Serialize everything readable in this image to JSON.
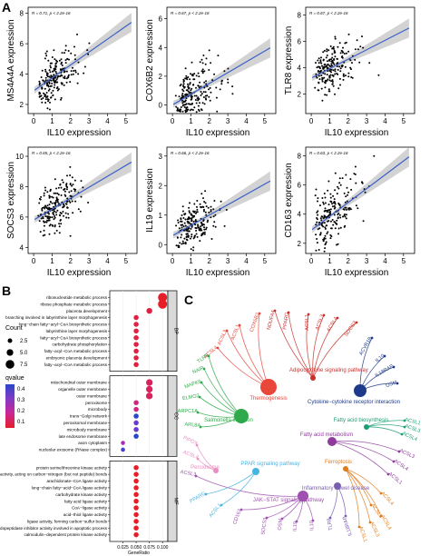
{
  "panel_letters": {
    "a": "A",
    "b": "B",
    "c": "C"
  },
  "chart_data": [
    {
      "id": "ms4a4a",
      "type": "scatter",
      "xlabel": "IL10 expression",
      "ylabel": "MS4A4A expression",
      "stat": "R = 0.71, p < 2.2e-16",
      "xlim": [
        -0.3,
        5.6
      ],
      "ylim": [
        1.4,
        8.4
      ],
      "xticks": [
        0,
        1,
        2,
        3,
        4,
        5
      ],
      "yticks": [
        2,
        4,
        6,
        8
      ],
      "fit": {
        "slope": 0.85,
        "intercept": 2.9
      },
      "seed": 11,
      "spread": 0.8
    },
    {
      "id": "cox6b2",
      "type": "scatter",
      "xlabel": "IL10 expression",
      "ylabel": "COX6B2 expression",
      "stat": "R = 0.67, p < 2.2e-16",
      "xlim": [
        -0.3,
        5.6
      ],
      "ylim": [
        -0.6,
        6.8
      ],
      "xticks": [
        0,
        1,
        2,
        3,
        4,
        5
      ],
      "yticks": [
        0,
        2,
        4,
        6
      ],
      "fit": {
        "slope": 0.75,
        "intercept": 0.0
      },
      "seed": 23,
      "spread": 0.9
    },
    {
      "id": "tlr8",
      "type": "scatter",
      "xlabel": "IL10 expression",
      "ylabel": "TLR8 expression",
      "stat": "R = 0.67, p < 2.2e-16",
      "xlim": [
        -0.3,
        5.6
      ],
      "ylim": [
        0.5,
        8.6
      ],
      "xticks": [
        0,
        1,
        2,
        3,
        4,
        5
      ],
      "yticks": [
        2,
        4,
        6,
        8
      ],
      "fit": {
        "slope": 0.72,
        "intercept": 3.2
      },
      "seed": 37,
      "spread": 0.9
    },
    {
      "id": "socs3",
      "type": "scatter",
      "xlabel": "IL10 expression",
      "ylabel": "SOCS3 expression",
      "stat": "R = 0.65, p < 2.2e-16",
      "xlim": [
        -0.3,
        5.6
      ],
      "ylim": [
        3.6,
        10.6
      ],
      "xticks": [
        0,
        1,
        2,
        3,
        4,
        5
      ],
      "yticks": [
        4,
        6,
        8,
        10
      ],
      "fit": {
        "slope": 0.72,
        "intercept": 5.8
      },
      "seed": 41,
      "spread": 0.85
    },
    {
      "id": "il19",
      "type": "scatter",
      "xlabel": "IL10 expression",
      "ylabel": "IL19 expression",
      "stat": "R = 0.66, p < 2.2e-16",
      "xlim": [
        -0.3,
        5.6
      ],
      "ylim": [
        -0.3,
        3.3
      ],
      "xticks": [
        0,
        1,
        2,
        3,
        4,
        5
      ],
      "yticks": [
        0,
        1,
        2,
        3
      ],
      "fit": {
        "slope": 0.35,
        "intercept": 0.3
      },
      "seed": 53,
      "spread": 0.4
    },
    {
      "id": "cd163",
      "type": "scatter",
      "xlabel": "IL10 expression",
      "ylabel": "CD163 expression",
      "stat": "R = 0.63, p < 2.2e-16",
      "xlim": [
        -0.3,
        5.6
      ],
      "ylim": [
        1.3,
        8.6
      ],
      "xticks": [
        0,
        1,
        2,
        3,
        4,
        5
      ],
      "yticks": [
        2,
        4,
        6,
        8
      ],
      "fit": {
        "slope": 0.95,
        "intercept": 2.9
      },
      "seed": 67,
      "spread": 0.95
    },
    {
      "id": "go_dotplot",
      "type": "scatter",
      "xlabel": "GeneRatio",
      "xticks": [
        0.025,
        0.05,
        0.075,
        0.1
      ],
      "xtick_labels": [
        "0.025",
        "0.050",
        "0.075",
        "0.100"
      ],
      "xlim": [
        0.0,
        0.11
      ],
      "legend": {
        "count_title": "Count",
        "count_values": [
          2.5,
          5.0,
          7.5
        ],
        "count_labels": [
          "2.5",
          "5.0",
          "7.5"
        ],
        "q_title": "qvalue",
        "q_ticks": [
          "0.4",
          "0.3",
          "0.2",
          "0.1"
        ]
      },
      "groups": [
        {
          "name": "BP",
          "terms": [
            {
              "term": "ribonucleotide metabolic process",
              "ratio": 0.1,
              "count": 8,
              "q": 0.02
            },
            {
              "term": "ribose phosphate metabolic process",
              "ratio": 0.1,
              "count": 8,
              "q": 0.02
            },
            {
              "term": "placenta development",
              "ratio": 0.075,
              "count": 4,
              "q": 0.05
            },
            {
              "term": "branching involved in labyrinthine layer morphogenesis",
              "ratio": 0.05,
              "count": 3,
              "q": 0.05
            },
            {
              "term": "long−chain fatty−acyl−CoA biosynthetic process",
              "ratio": 0.05,
              "count": 3,
              "q": 0.05
            },
            {
              "term": "labyrinthine layer morphogenesis",
              "ratio": 0.05,
              "count": 3,
              "q": 0.05
            },
            {
              "term": "fatty−acyl−CoA biosynthetic process",
              "ratio": 0.05,
              "count": 3,
              "q": 0.05
            },
            {
              "term": "carbohydrate phosphorylation",
              "ratio": 0.05,
              "count": 3,
              "q": 0.05
            },
            {
              "term": "fatty−acyl−CoA metabolic process",
              "ratio": 0.05,
              "count": 3,
              "q": 0.05
            },
            {
              "term": "embryonic placenta development",
              "ratio": 0.05,
              "count": 3,
              "q": 0.05
            },
            {
              "term": "fatty−acyl−CoA metabolic process",
              "ratio": 0.05,
              "count": 3,
              "q": 0.05
            }
          ]
        },
        {
          "name": "CC",
          "terms": [
            {
              "term": "mitochondrial outer membrane",
              "ratio": 0.075,
              "count": 5,
              "q": 0.08
            },
            {
              "term": "organelle outer membrane",
              "ratio": 0.075,
              "count": 5,
              "q": 0.08
            },
            {
              "term": "outer membrane",
              "ratio": 0.075,
              "count": 5,
              "q": 0.08
            },
            {
              "term": "peroxisome",
              "ratio": 0.05,
              "count": 3,
              "q": 0.12
            },
            {
              "term": "microbody",
              "ratio": 0.05,
              "count": 3,
              "q": 0.12
            },
            {
              "term": "trans−Golgi network",
              "ratio": 0.05,
              "count": 3,
              "q": 0.4
            },
            {
              "term": "peroxisomal membrane",
              "ratio": 0.05,
              "count": 3,
              "q": 0.3
            },
            {
              "term": "microbody membrane",
              "ratio": 0.05,
              "count": 3,
              "q": 0.3
            },
            {
              "term": "late endosome membrane",
              "ratio": 0.05,
              "count": 3,
              "q": 0.4
            },
            {
              "term": "axon cytoplasm",
              "ratio": 0.025,
              "count": 2,
              "q": 0.2
            },
            {
              "term": "nucleolar exosome (RNase complex)",
              "ratio": 0.025,
              "count": 2,
              "q": 0.35
            }
          ]
        },
        {
          "name": "MF",
          "terms": [
            {
              "term": "protein serine/threonine kinase activity",
              "ratio": 0.05,
              "count": 3,
              "q": 0.02
            },
            {
              "term": "hydrolase activity, acting on carbon−nitrogen (but not peptide) bonds",
              "ratio": 0.05,
              "count": 3,
              "q": 0.02
            },
            {
              "term": "arachidonate−CoA ligase activity",
              "ratio": 0.05,
              "count": 3,
              "q": 0.02
            },
            {
              "term": "long−chain fatty−acid−CoA ligase activity",
              "ratio": 0.05,
              "count": 3,
              "q": 0.02
            },
            {
              "term": "carbohydrate kinase activity",
              "ratio": 0.05,
              "count": 3,
              "q": 0.02
            },
            {
              "term": "fatty acid ligase activity",
              "ratio": 0.05,
              "count": 3,
              "q": 0.02
            },
            {
              "term": "CoA−ligase activity",
              "ratio": 0.05,
              "count": 3,
              "q": 0.02
            },
            {
              "term": "acid−thiol ligase activity",
              "ratio": 0.05,
              "count": 3,
              "q": 0.02
            },
            {
              "term": "ligase activity, forming carbon−sulfur bonds",
              "ratio": 0.05,
              "count": 3,
              "q": 0.02
            },
            {
              "term": "cysteine−type endopeptidase inhibitor activity involved in apoptotic process",
              "ratio": 0.05,
              "count": 3,
              "q": 0.02
            },
            {
              "term": "calmodulin−dependent protein kinase activity",
              "ratio": 0.05,
              "count": 3,
              "q": 0.02
            }
          ]
        }
      ]
    }
  ],
  "network": {
    "hubs": [
      {
        "name": "Thermogenesis",
        "color": "#e8473a"
      },
      {
        "name": "Adipocytokine signaling pathway",
        "color": "#c9302c"
      },
      {
        "name": "Cytokine−cytokine receptor interaction",
        "color": "#1f3a8a"
      },
      {
        "name": "Salmonella infection",
        "color": "#2faa4a"
      },
      {
        "name": "Fatty acid biosynthesis",
        "color": "#1a9e76"
      },
      {
        "name": "Fatty acid metabolism",
        "color": "#8e3b9c"
      },
      {
        "name": "Ferroptosis",
        "color": "#e07b1a"
      },
      {
        "name": "PPAR signaling pathway",
        "color": "#48b4e0"
      },
      {
        "name": "Inflammatory bowel disease",
        "color": "#7a5fb0"
      },
      {
        "name": "JAK−STAT signaling pathway",
        "color": "#a050b0"
      },
      {
        "name": "Peroxisome",
        "color": "#e88ec0"
      }
    ],
    "genes": [
      "COX6B2",
      "NDUFA4",
      "PPARG",
      "ACSL1",
      "ACSL3",
      "ACSL4",
      "SOCS3",
      "ACVR1B",
      "IL10",
      "IL18RAP",
      "OSM",
      "ACSL1",
      "ACSL3",
      "ACSL4",
      "ACSL1",
      "ACSL3",
      "ACSL4",
      "ACSL3",
      "ACSL4",
      "ACSL1",
      "ACSL4",
      "ACSL3",
      "TLR8",
      "NAIP",
      "MAPK6",
      "ELMO2",
      "ARPC1A",
      "ARL8A",
      "PIPOX",
      "ACSL4",
      "ACSL3",
      "PPARG",
      "ACSL1",
      "CD163",
      "SOCS3",
      "OSM",
      "IL19",
      "IL10",
      "TLR8",
      "IL18RAP",
      "ACSL4",
      "ACSL3",
      "ACSL1"
    ]
  }
}
